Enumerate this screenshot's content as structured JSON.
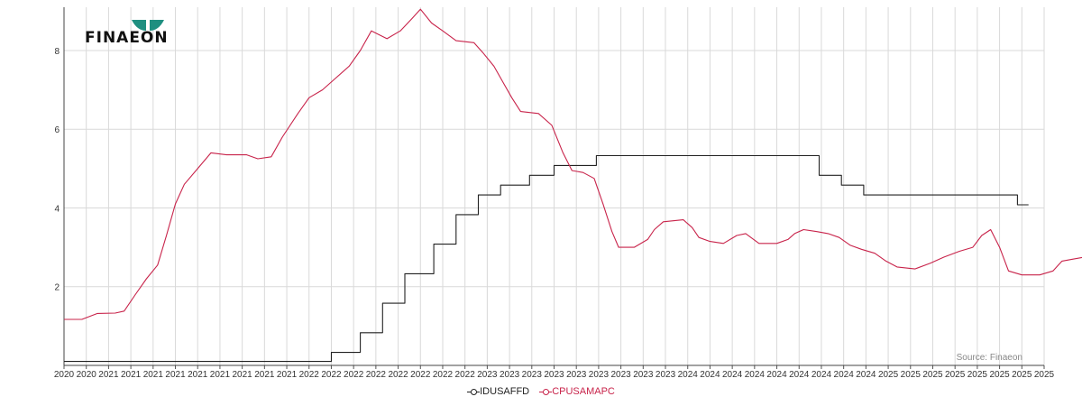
{
  "brand": {
    "logo_text": "FINAEON"
  },
  "source_label": "Source: Finaeon",
  "chart_data": {
    "type": "line",
    "x_tick_labels": [
      "2020",
      "2020",
      "2021",
      "2021",
      "2021",
      "2021",
      "2021",
      "2021",
      "2021",
      "2021",
      "2021",
      "2022",
      "2022",
      "2022",
      "2022",
      "2022",
      "2022",
      "2022",
      "2022",
      "2023",
      "2023",
      "2023",
      "2023",
      "2023",
      "2023",
      "2023",
      "2023",
      "2023",
      "2024",
      "2024",
      "2024",
      "2024",
      "2024",
      "2024",
      "2024",
      "2024",
      "2024",
      "2025",
      "2025",
      "2025",
      "2025",
      "2025",
      "2025",
      "2025",
      "2025"
    ],
    "y_ticks": [
      2,
      4,
      6,
      8
    ],
    "ylim": [
      0,
      9.1
    ],
    "grid": true,
    "legend_position": "bottom-center",
    "series": [
      {
        "name": "IDUSAFFD",
        "color": "#222222",
        "points": [
          [
            0,
            0.1
          ],
          [
            12.0,
            0.1
          ],
          [
            12.0,
            0.33
          ],
          [
            13.3,
            0.33
          ],
          [
            13.3,
            0.83
          ],
          [
            14.3,
            0.83
          ],
          [
            14.3,
            1.58
          ],
          [
            15.3,
            1.58
          ],
          [
            15.3,
            2.33
          ],
          [
            16.6,
            2.33
          ],
          [
            16.6,
            3.08
          ],
          [
            17.6,
            3.08
          ],
          [
            17.6,
            3.83
          ],
          [
            18.6,
            3.83
          ],
          [
            18.6,
            4.33
          ],
          [
            19.6,
            4.33
          ],
          [
            19.6,
            4.58
          ],
          [
            20.9,
            4.58
          ],
          [
            20.9,
            4.83
          ],
          [
            22.0,
            4.83
          ],
          [
            22.0,
            5.08
          ],
          [
            23.9,
            5.08
          ],
          [
            23.9,
            5.33
          ],
          [
            33.9,
            5.33
          ],
          [
            33.9,
            4.83
          ],
          [
            34.9,
            4.83
          ],
          [
            34.9,
            4.58
          ],
          [
            35.9,
            4.58
          ],
          [
            35.9,
            4.33
          ],
          [
            42.8,
            4.33
          ],
          [
            42.8,
            4.08
          ],
          [
            43.3,
            4.08
          ]
        ]
      },
      {
        "name": "CPUSAMAPC",
        "color": "#c8234a",
        "points": [
          [
            0,
            1.17
          ],
          [
            0.8,
            1.17
          ],
          [
            1.5,
            1.32
          ],
          [
            2.3,
            1.33
          ],
          [
            2.7,
            1.38
          ],
          [
            3.2,
            1.8
          ],
          [
            3.7,
            2.2
          ],
          [
            4.2,
            2.55
          ],
          [
            4.6,
            3.3
          ],
          [
            5.0,
            4.1
          ],
          [
            5.4,
            4.6
          ],
          [
            6.0,
            5.0
          ],
          [
            6.6,
            5.4
          ],
          [
            7.3,
            5.35
          ],
          [
            8.2,
            5.35
          ],
          [
            8.7,
            5.25
          ],
          [
            9.3,
            5.3
          ],
          [
            9.8,
            5.8
          ],
          [
            10.5,
            6.4
          ],
          [
            11.0,
            6.8
          ],
          [
            11.6,
            7.0
          ],
          [
            12.2,
            7.3
          ],
          [
            12.8,
            7.6
          ],
          [
            13.3,
            8.0
          ],
          [
            13.8,
            8.5
          ],
          [
            14.5,
            8.3
          ],
          [
            15.1,
            8.5
          ],
          [
            15.6,
            8.8
          ],
          [
            16.0,
            9.05
          ],
          [
            16.5,
            8.7
          ],
          [
            17.0,
            8.5
          ],
          [
            17.6,
            8.25
          ],
          [
            18.4,
            8.2
          ],
          [
            18.8,
            7.95
          ],
          [
            19.3,
            7.6
          ],
          [
            19.7,
            7.2
          ],
          [
            20.1,
            6.8
          ],
          [
            20.5,
            6.45
          ],
          [
            21.3,
            6.4
          ],
          [
            21.9,
            6.1
          ],
          [
            22.4,
            5.4
          ],
          [
            22.8,
            4.95
          ],
          [
            23.3,
            4.9
          ],
          [
            23.8,
            4.75
          ],
          [
            24.2,
            4.1
          ],
          [
            24.6,
            3.4
          ],
          [
            24.9,
            3.0
          ],
          [
            25.6,
            3.0
          ],
          [
            26.2,
            3.2
          ],
          [
            26.5,
            3.45
          ],
          [
            26.9,
            3.65
          ],
          [
            27.8,
            3.7
          ],
          [
            28.2,
            3.5
          ],
          [
            28.5,
            3.25
          ],
          [
            29.0,
            3.15
          ],
          [
            29.6,
            3.1
          ],
          [
            30.2,
            3.3
          ],
          [
            30.6,
            3.35
          ],
          [
            31.2,
            3.1
          ],
          [
            32.0,
            3.1
          ],
          [
            32.5,
            3.2
          ],
          [
            32.8,
            3.35
          ],
          [
            33.2,
            3.45
          ],
          [
            33.8,
            3.4
          ],
          [
            34.3,
            3.35
          ],
          [
            34.8,
            3.25
          ],
          [
            35.3,
            3.05
          ],
          [
            35.8,
            2.95
          ],
          [
            36.4,
            2.85
          ],
          [
            36.9,
            2.65
          ],
          [
            37.4,
            2.5
          ],
          [
            38.2,
            2.45
          ],
          [
            38.9,
            2.6
          ],
          [
            39.5,
            2.75
          ],
          [
            40.2,
            2.9
          ],
          [
            40.8,
            3.0
          ],
          [
            41.2,
            3.3
          ],
          [
            41.6,
            3.45
          ],
          [
            42.0,
            3.0
          ],
          [
            42.4,
            2.4
          ],
          [
            43.0,
            2.3
          ],
          [
            43.8,
            2.3
          ],
          [
            44.4,
            2.4
          ],
          [
            44.8,
            2.65
          ],
          [
            45.3,
            2.7
          ],
          [
            45.8,
            2.75
          ],
          [
            46.2,
            2.82
          ],
          [
            46.6,
            2.9
          ]
        ]
      }
    ]
  }
}
